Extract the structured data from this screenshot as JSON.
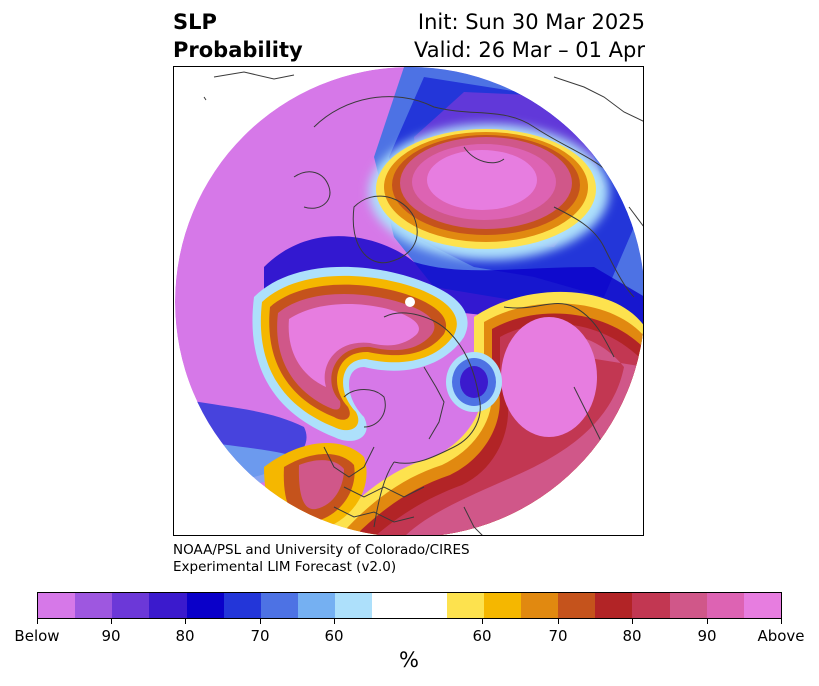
{
  "title": {
    "left_line1": "SLP",
    "left_line2": "Probability",
    "right_line1": "Init: Sun 30 Mar 2025",
    "right_line2": "Valid: 26 Mar – 01 Apr"
  },
  "credit": {
    "line1": "NOAA/PSL and University of Colorado/CIRES",
    "line2": "Experimental LIM Forecast (v2.0)"
  },
  "colorbar": {
    "colors": [
      "#d678e8",
      "#9e57e0",
      "#6c38d8",
      "#3b1acd",
      "#0a00c9",
      "#2336d9",
      "#4d72e4",
      "#75b0f2",
      "#ade0fb",
      "#ffffff",
      "#fde24e",
      "#f5b700",
      "#e18910",
      "#c5531c",
      "#b22426",
      "#c23752",
      "#d05789",
      "#dd63b3",
      "#e77de0"
    ],
    "tick_labels": [
      "Below",
      "90",
      "80",
      "70",
      "60",
      "60",
      "70",
      "80",
      "90",
      "Above"
    ],
    "label": "%"
  },
  "map": {
    "projection": "north-polar-stereographic",
    "field": "sea-level-pressure-probability",
    "marker": "white-dot-north-pole"
  }
}
